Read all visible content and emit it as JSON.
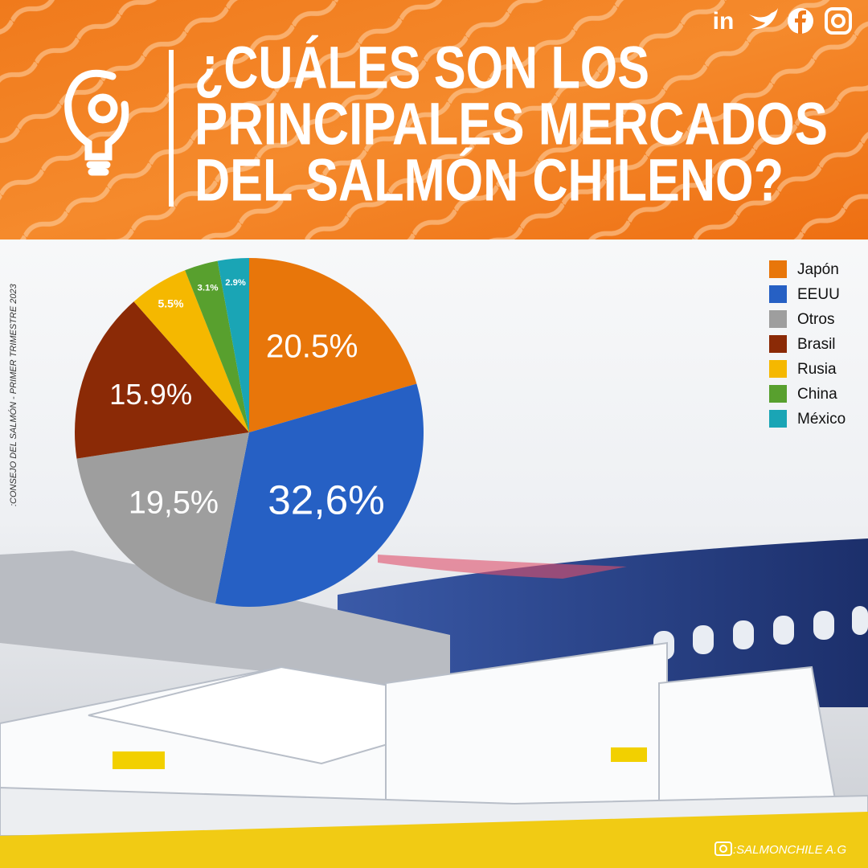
{
  "chart_data": {
    "type": "pie",
    "title": [
      "¿CUÁLES SON LOS",
      "PRINCIPALES MERCADOS",
      "DEL SALMÓN CHILENO?"
    ],
    "source": ":CONSEJO DEL SALMÓN - PRIMER TRIMESTRE 2023",
    "credit": ":SALMONCHILE A.G",
    "categories": [
      "Japón",
      "EEUU",
      "Otros",
      "Brasil",
      "Rusia",
      "China",
      "México"
    ],
    "values": [
      20.5,
      32.6,
      19.5,
      15.9,
      5.5,
      3.1,
      2.9
    ],
    "value_labels": [
      "20.5%",
      "32,6%",
      "19,5%",
      "15.9%",
      "5.5%",
      "3.1%",
      "2.9%"
    ],
    "colors": [
      "#e8760a",
      "#2660c4",
      "#9e9e9e",
      "#8b2a06",
      "#f5b800",
      "#58a02e",
      "#1aa5b5"
    ],
    "legend": "top-right"
  }
}
